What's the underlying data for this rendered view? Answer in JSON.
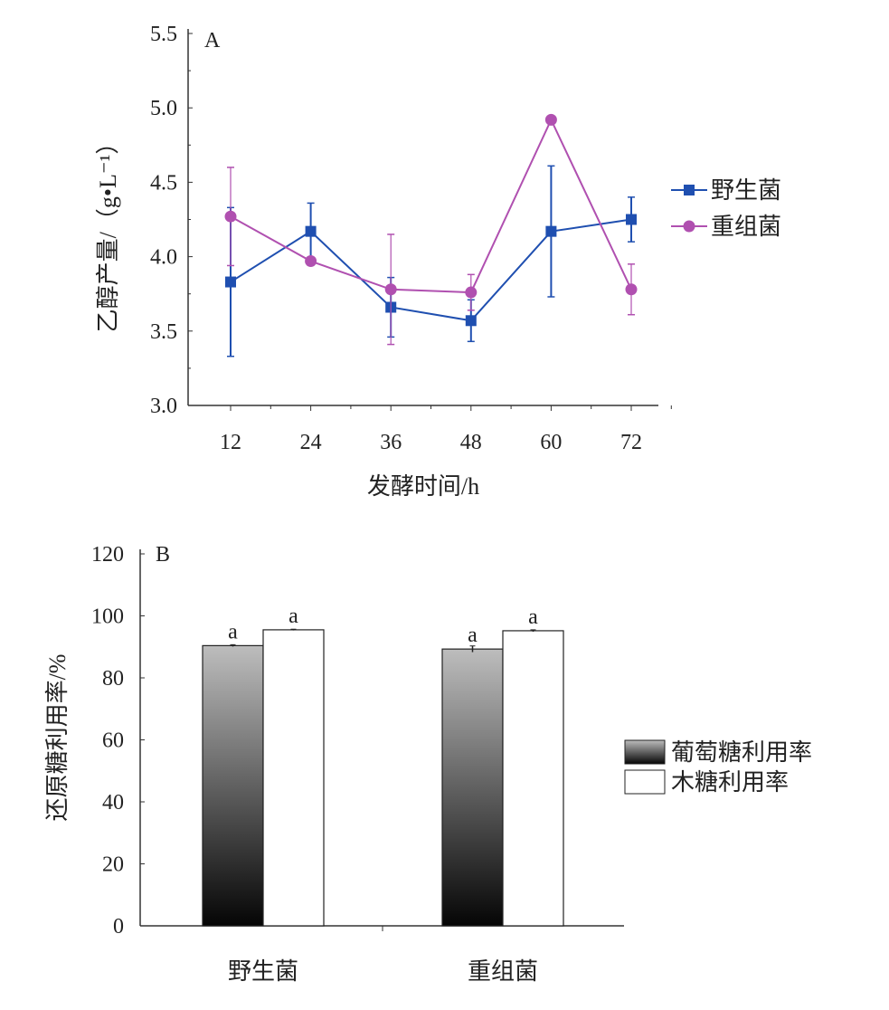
{
  "chart_data": [
    {
      "type": "line",
      "panel_label": "A",
      "xlabel": "发酵时间/h",
      "ylabel": "乙醇产量/（g•L⁻¹）",
      "x": [
        12,
        24,
        36,
        48,
        60,
        72
      ],
      "x_ticks": [
        "12",
        "24",
        "36",
        "48",
        "60",
        "72"
      ],
      "ylim": [
        3.0,
        5.5
      ],
      "y_ticks": [
        "3.0",
        "3.5",
        "4.0",
        "4.5",
        "5.0",
        "5.5"
      ],
      "legend_position": "right",
      "series": [
        {
          "name": "野生菌",
          "color": "#1f4fb0",
          "marker": "square",
          "values": [
            3.83,
            4.17,
            3.66,
            3.57,
            4.17,
            4.25
          ],
          "errors": [
            0.5,
            0.19,
            0.2,
            0.14,
            0.44,
            0.15
          ]
        },
        {
          "name": "重组菌",
          "color": "#b050b0",
          "marker": "circle",
          "values": [
            4.27,
            3.97,
            3.78,
            3.76,
            4.92,
            3.78
          ],
          "errors": [
            0.33,
            0.02,
            0.37,
            0.12,
            0.02,
            0.17
          ]
        }
      ]
    },
    {
      "type": "bar",
      "panel_label": "B",
      "ylabel": "还原糖利用率/%",
      "categories": [
        "野生菌",
        "重组菌"
      ],
      "ylim": [
        0,
        120
      ],
      "y_ticks": [
        "0",
        "20",
        "40",
        "60",
        "80",
        "100",
        "120"
      ],
      "legend_position": "right",
      "series": [
        {
          "name": "葡萄糖利用率",
          "fill": "gradient",
          "values": [
            90.4,
            89.3
          ],
          "errors": [
            0.3,
            1.0
          ],
          "labels": [
            "a",
            "a"
          ]
        },
        {
          "name": "木糖利用率",
          "fill": "#ffffff",
          "values": [
            95.5,
            95.2
          ],
          "errors": [
            0.2,
            0.3
          ],
          "labels": [
            "a",
            "a"
          ]
        }
      ]
    }
  ]
}
